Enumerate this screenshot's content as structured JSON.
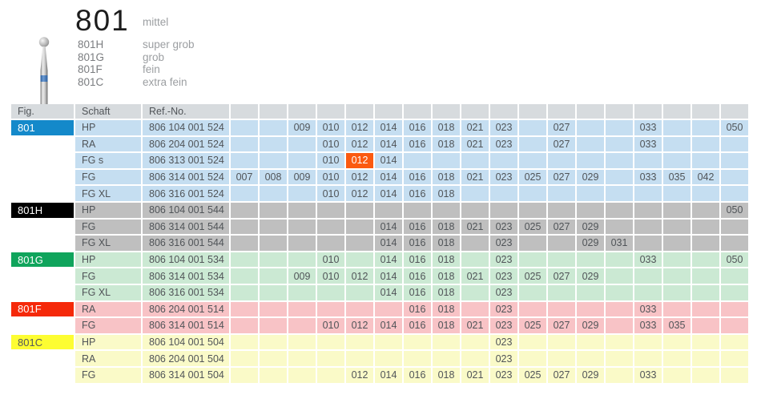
{
  "header": {
    "title": "801",
    "grade": "mittel",
    "variants": [
      {
        "code": "801H",
        "grade": "super grob"
      },
      {
        "code": "801G",
        "grade": "grob"
      },
      {
        "code": "801F",
        "grade": "fein"
      },
      {
        "code": "801C",
        "grade": "extra fein"
      }
    ]
  },
  "bur_icon": "round-ball-bur-icon",
  "colors": {
    "header_row_bg": "#d7dbde",
    "highlight_cell_bg": "#fb5a10",
    "highlight_cell_fg": "#ffffff",
    "cell_text": "#505458"
  },
  "table": {
    "headers": {
      "fig": "Fig.",
      "schaft": "Schaft",
      "ref": "Ref.-No."
    },
    "size_columns": [
      "007",
      "008",
      "009",
      "010",
      "012",
      "014",
      "016",
      "018",
      "021",
      "023",
      "025",
      "027",
      "029",
      "031",
      "033",
      "035",
      "042",
      "050"
    ],
    "groups": [
      {
        "fig": "801",
        "fig_bg": "#1489ca",
        "fig_fg": "#ffffff",
        "row_bg": "#c5def1",
        "rows": [
          {
            "schaft": "HP",
            "ref": "806 104 001 524",
            "sizes": [
              "009",
              "010",
              "012",
              "014",
              "016",
              "018",
              "021",
              "023",
              "027",
              "033",
              "050"
            ]
          },
          {
            "schaft": "RA",
            "ref": "806 204 001 524",
            "sizes": [
              "010",
              "012",
              "014",
              "016",
              "018",
              "021",
              "023",
              "027",
              "033"
            ]
          },
          {
            "schaft": "FG s",
            "ref": "806 313 001 524",
            "sizes": [
              "010",
              "012",
              "014"
            ],
            "highlighted_size": "012"
          },
          {
            "schaft": "FG",
            "ref": "806 314 001 524",
            "sizes": [
              "007",
              "008",
              "009",
              "010",
              "012",
              "014",
              "016",
              "018",
              "021",
              "023",
              "025",
              "027",
              "029",
              "033",
              "035",
              "042"
            ]
          },
          {
            "schaft": "FG XL",
            "ref": "806 316 001 524",
            "sizes": [
              "010",
              "012",
              "014",
              "016",
              "018"
            ]
          }
        ]
      },
      {
        "fig": "801H",
        "fig_bg": "#000000",
        "fig_fg": "#ffffff",
        "row_bg": "#bfbfbf",
        "rows": [
          {
            "schaft": "HP",
            "ref": "806 104 001 544",
            "sizes": [
              "050"
            ]
          },
          {
            "schaft": "FG",
            "ref": "806 314 001 544",
            "sizes": [
              "014",
              "016",
              "018",
              "021",
              "023",
              "025",
              "027",
              "029"
            ]
          },
          {
            "schaft": "FG XL",
            "ref": "806 316 001 544",
            "sizes": [
              "014",
              "016",
              "018",
              "023",
              "029",
              "031"
            ]
          }
        ]
      },
      {
        "fig": "801G",
        "fig_bg": "#10a45c",
        "fig_fg": "#ffffff",
        "row_bg": "#cbe9d3",
        "rows": [
          {
            "schaft": "HP",
            "ref": "806 104 001 534",
            "sizes": [
              "010",
              "014",
              "016",
              "018",
              "023",
              "033",
              "050"
            ]
          },
          {
            "schaft": "FG",
            "ref": "806 314 001 534",
            "sizes": [
              "009",
              "010",
              "012",
              "014",
              "016",
              "018",
              "021",
              "023",
              "025",
              "027",
              "029"
            ]
          },
          {
            "schaft": "FG XL",
            "ref": "806 316 001 534",
            "sizes": [
              "014",
              "016",
              "018",
              "023"
            ]
          }
        ]
      },
      {
        "fig": "801F",
        "fig_bg": "#f5290a",
        "fig_fg": "#ffffff",
        "row_bg": "#f8c3c6",
        "rows": [
          {
            "schaft": "RA",
            "ref": "806 204 001 514",
            "sizes": [
              "016",
              "018",
              "023",
              "033"
            ]
          },
          {
            "schaft": "FG",
            "ref": "806 314 001 514",
            "sizes": [
              "010",
              "012",
              "014",
              "016",
              "018",
              "021",
              "023",
              "025",
              "027",
              "029",
              "033",
              "035"
            ]
          }
        ]
      },
      {
        "fig": "801C",
        "fig_bg": "#fdfd32",
        "fig_fg": "#55585b",
        "row_bg": "#fafac8",
        "rows": [
          {
            "schaft": "HP",
            "ref": "806 104 001 504",
            "sizes": [
              "023"
            ]
          },
          {
            "schaft": "RA",
            "ref": "806 204 001 504",
            "sizes": [
              "023"
            ]
          },
          {
            "schaft": "FG",
            "ref": "806 314 001 504",
            "sizes": [
              "012",
              "014",
              "016",
              "018",
              "021",
              "023",
              "025",
              "027",
              "029",
              "033"
            ]
          }
        ]
      }
    ]
  }
}
